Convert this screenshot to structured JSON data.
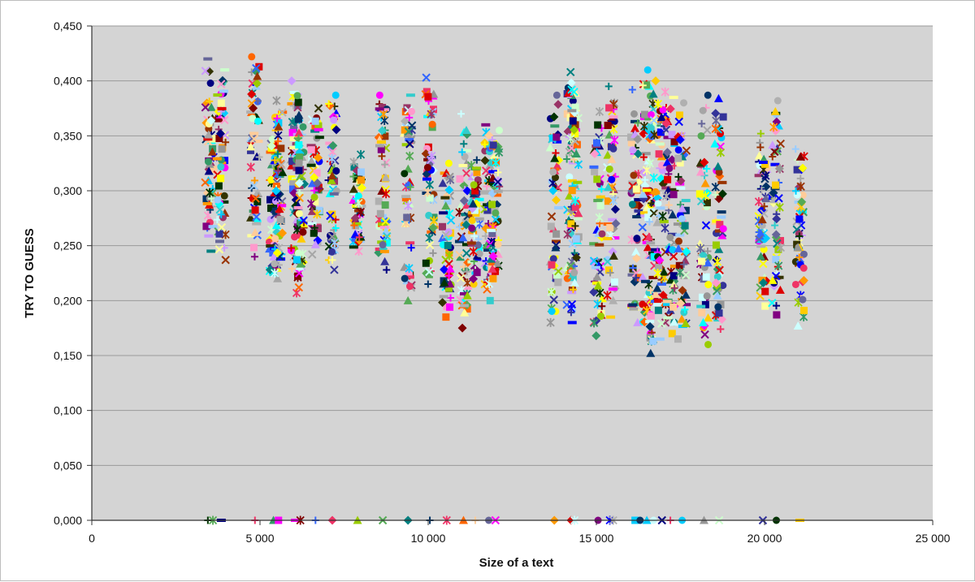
{
  "colors": {
    "plot_background": "#d4d4d4",
    "gridline": "#9a9a9a",
    "axis": "#333333"
  },
  "chart_data": {
    "type": "scatter",
    "title": "",
    "xlabel": "Size of a text",
    "ylabel": "TRY TO GUESS",
    "xlim": [
      0,
      25000
    ],
    "ylim": [
      0,
      0.45
    ],
    "grid": true,
    "x_ticks": [
      {
        "value": 0,
        "label": "0"
      },
      {
        "value": 5000,
        "label": "5 000"
      },
      {
        "value": 10000,
        "label": "10 000"
      },
      {
        "value": 15000,
        "label": "15 000"
      },
      {
        "value": 20000,
        "label": "20 000"
      },
      {
        "value": 25000,
        "label": "25 000"
      }
    ],
    "y_ticks": [
      {
        "value": 0,
        "label": "0,000"
      },
      {
        "value": 0.05,
        "label": "0,050"
      },
      {
        "value": 0.1,
        "label": "0,100"
      },
      {
        "value": 0.15,
        "label": "0,150"
      },
      {
        "value": 0.2,
        "label": "0,200"
      },
      {
        "value": 0.25,
        "label": "0,250"
      },
      {
        "value": 0.3,
        "label": "0,300"
      },
      {
        "value": 0.35,
        "label": "0,350"
      },
      {
        "value": 0.4,
        "label": "0,400"
      },
      {
        "value": 0.45,
        "label": "0,450"
      }
    ],
    "clusters": [
      {
        "x": 3500,
        "y_min": 0.245,
        "y_max": 0.42
      },
      {
        "x": 3850,
        "y_min": 0.237,
        "y_max": 0.41
      },
      {
        "x": 4850,
        "y_min": 0.24,
        "y_max": 0.422
      },
      {
        "x": 5400,
        "y_min": 0.22,
        "y_max": 0.355
      },
      {
        "x": 5550,
        "y_min": 0.225,
        "y_max": 0.382
      },
      {
        "x": 6050,
        "y_min": 0.207,
        "y_max": 0.4
      },
      {
        "x": 6200,
        "y_min": 0.212,
        "y_max": 0.365
      },
      {
        "x": 6650,
        "y_min": 0.242,
        "y_max": 0.375
      },
      {
        "x": 7150,
        "y_min": 0.228,
        "y_max": 0.387
      },
      {
        "x": 7900,
        "y_min": 0.245,
        "y_max": 0.333
      },
      {
        "x": 8650,
        "y_min": 0.228,
        "y_max": 0.387
      },
      {
        "x": 9400,
        "y_min": 0.2,
        "y_max": 0.387
      },
      {
        "x": 10050,
        "y_min": 0.215,
        "y_max": 0.403
      },
      {
        "x": 10550,
        "y_min": 0.185,
        "y_max": 0.325
      },
      {
        "x": 11050,
        "y_min": 0.175,
        "y_max": 0.37
      },
      {
        "x": 11400,
        "y_min": 0.215,
        "y_max": 0.328
      },
      {
        "x": 11800,
        "y_min": 0.2,
        "y_max": 0.36
      },
      {
        "x": 12000,
        "y_min": 0.22,
        "y_max": 0.355
      },
      {
        "x": 13750,
        "y_min": 0.18,
        "y_max": 0.387
      },
      {
        "x": 14250,
        "y_min": 0.18,
        "y_max": 0.408
      },
      {
        "x": 14350,
        "y_min": 0.21,
        "y_max": 0.39
      },
      {
        "x": 15050,
        "y_min": 0.168,
        "y_max": 0.372
      },
      {
        "x": 15450,
        "y_min": 0.185,
        "y_max": 0.395
      },
      {
        "x": 16150,
        "y_min": 0.18,
        "y_max": 0.392
      },
      {
        "x": 16500,
        "y_min": 0.17,
        "y_max": 0.41
      },
      {
        "x": 16700,
        "y_min": 0.152,
        "y_max": 0.4
      },
      {
        "x": 16950,
        "y_min": 0.165,
        "y_max": 0.39
      },
      {
        "x": 17200,
        "y_min": 0.17,
        "y_max": 0.385
      },
      {
        "x": 17550,
        "y_min": 0.165,
        "y_max": 0.38
      },
      {
        "x": 18200,
        "y_min": 0.16,
        "y_max": 0.387
      },
      {
        "x": 18650,
        "y_min": 0.174,
        "y_max": 0.384
      },
      {
        "x": 19950,
        "y_min": 0.195,
        "y_max": 0.352
      },
      {
        "x": 20350,
        "y_min": 0.187,
        "y_max": 0.382
      },
      {
        "x": 21050,
        "y_min": 0.177,
        "y_max": 0.338
      }
    ],
    "zero_points_x": [
      3450,
      3600,
      3850,
      4850,
      5400,
      5550,
      6050,
      6200,
      6650,
      7150,
      7900,
      8650,
      9400,
      10050,
      10550,
      11050,
      11400,
      11800,
      12000,
      13750,
      14250,
      14350,
      15050,
      15400,
      15500,
      16150,
      16300,
      16500,
      16700,
      16950,
      17200,
      17550,
      18200,
      18650,
      19950,
      20350,
      21050
    ]
  }
}
